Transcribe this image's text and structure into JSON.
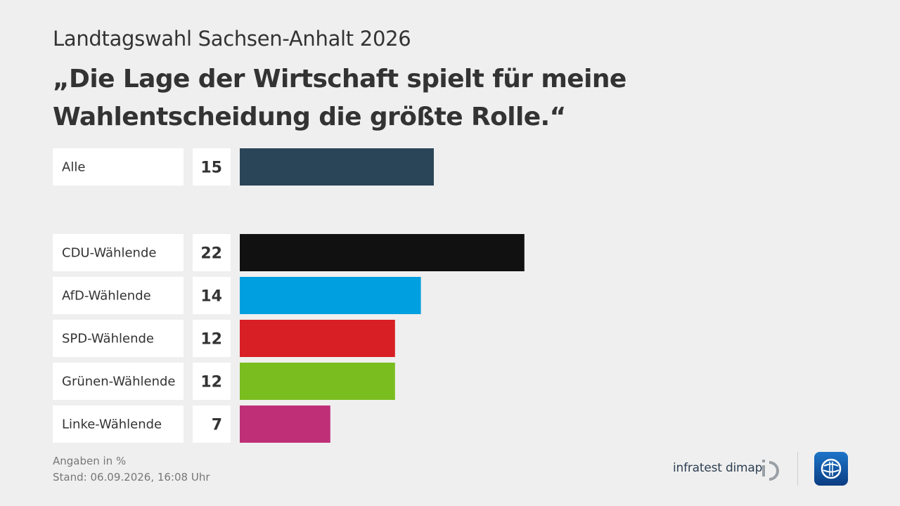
{
  "header": {
    "subtitle": "Landtagswahl Sachsen-Anhalt 2026",
    "title": "„Die Lage der Wirtschaft spielt für meine Wahlentscheidung die größte Rolle.“"
  },
  "chart_data": {
    "type": "bar",
    "orientation": "horizontal",
    "unit": "%",
    "categories": [
      "Alle",
      "CDU-Wählende",
      "AfD-Wählende",
      "SPD-Wählende",
      "Grünen-Wählende",
      "Linke-Wählende"
    ],
    "values": [
      15,
      22,
      14,
      12,
      12,
      7
    ],
    "colors": [
      "#2b4558",
      "#111111",
      "#009fe0",
      "#d81f25",
      "#79bd1f",
      "#bf2f77"
    ],
    "xlim": [
      0,
      100
    ],
    "grid": false,
    "legend": "none"
  },
  "footer": {
    "note": "Angaben in %",
    "stand": "Stand:  06.09.2026, 16:08 Uhr"
  },
  "brand": {
    "name": "infratest dimap",
    "logo_icon": "infratest-dimap-logo-icon",
    "broadcaster_icon": "tagesschau-logo-icon"
  }
}
